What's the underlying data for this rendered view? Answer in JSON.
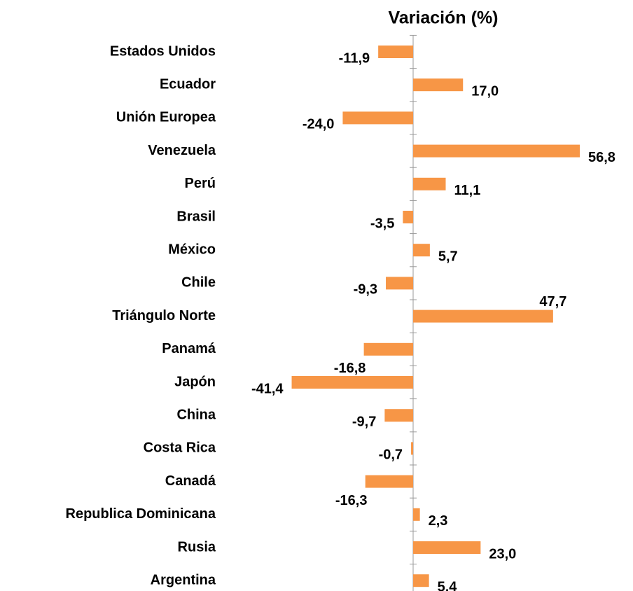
{
  "chart_data": {
    "type": "bar",
    "orientation": "horizontal",
    "title": "Variación (%)",
    "categories": [
      "Estados Unidos",
      "Ecuador",
      "Unión Europea",
      "Venezuela",
      "Perú",
      "Brasil",
      "México",
      "Chile",
      "Triángulo Norte",
      "Panamá",
      "Japón",
      "China",
      "Costa Rica",
      "Canadá",
      "Republica Dominicana",
      "Rusia",
      "Argentina"
    ],
    "values": [
      -11.9,
      17.0,
      -24.0,
      56.8,
      11.1,
      -3.5,
      5.7,
      -9.3,
      47.7,
      -16.8,
      -41.4,
      -9.7,
      -0.7,
      -16.3,
      2.3,
      23.0,
      5.4
    ],
    "value_labels": [
      "-11,9",
      "17,0",
      "-24,0",
      "56,8",
      "11,1",
      "-3,5",
      "5,7",
      "-9,3",
      "47,7",
      "-16,8",
      "-41,4",
      "-9,7",
      "-0,7",
      "-16,3",
      "2,3",
      "23,0",
      "5,4"
    ],
    "color": "#f79646",
    "xlim": [
      -60,
      60
    ]
  }
}
